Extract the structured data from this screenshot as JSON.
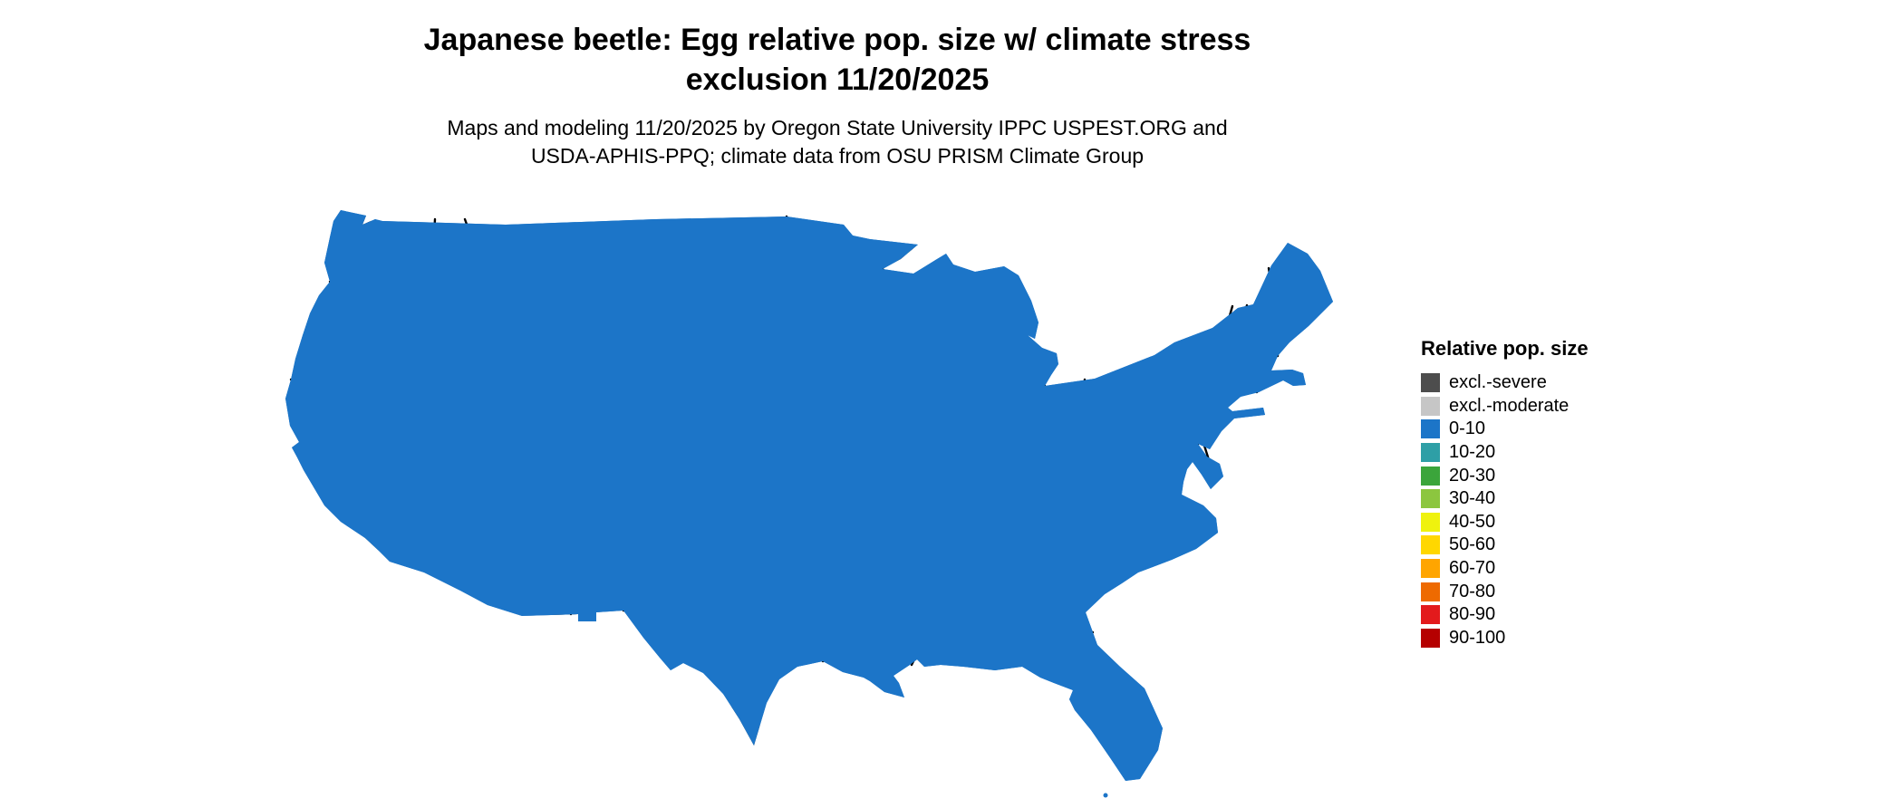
{
  "header": {
    "title_line1": "Japanese beetle: Egg relative pop. size w/ climate stress",
    "title_line2": "exclusion 11/20/2025",
    "subtitle_line1": "Maps and modeling 11/20/2025 by Oregon State University IPPC USPEST.ORG and",
    "subtitle_line2": "USDA-APHIS-PPQ; climate data from OSU PRISM Climate Group"
  },
  "map": {
    "region": "contiguous-united-states",
    "base_color": "#1C75C8",
    "water_color": "#FFFFFF",
    "border_color": "#000000",
    "sound_color": "#0F2740"
  },
  "legend": {
    "title": "Relative pop. size",
    "items": [
      {
        "label": "excl.-severe",
        "color": "#4D4D4D"
      },
      {
        "label": "excl.-moderate",
        "color": "#C6C6C6"
      },
      {
        "label": "0-10",
        "color": "#1C75C8"
      },
      {
        "label": "10-20",
        "color": "#2E9FA6"
      },
      {
        "label": "20-30",
        "color": "#3BA53B"
      },
      {
        "label": "30-40",
        "color": "#8CC63F"
      },
      {
        "label": "40-50",
        "color": "#EFF20E"
      },
      {
        "label": "50-60",
        "color": "#FFD700"
      },
      {
        "label": "60-70",
        "color": "#FFA500"
      },
      {
        "label": "70-80",
        "color": "#EE6A00"
      },
      {
        "label": "80-90",
        "color": "#E31A1C"
      },
      {
        "label": "90-100",
        "color": "#B50000"
      }
    ]
  }
}
